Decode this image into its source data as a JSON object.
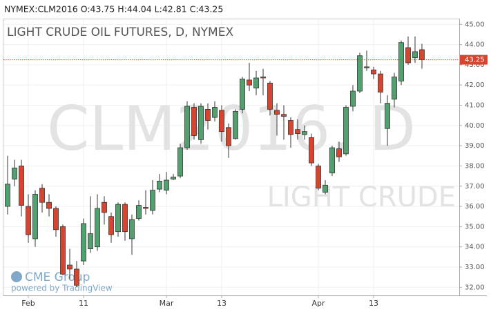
{
  "chart_data": {
    "type": "candlestick",
    "header": "NYMEX:CLM2016 O:43.75 H:44.04 L:42.81 C:43.25",
    "title": "LIGHT CRUDE OIL FUTURES, D, NYMEX",
    "watermark": "CLM2016, D",
    "watermark_sub": "LIGHT CRUDE",
    "logo": "CME Group",
    "powered": "powered by TradingView",
    "categories": [
      null,
      null,
      null,
      "Feb",
      null,
      null,
      null,
      null,
      null,
      null,
      null,
      "11",
      null,
      null,
      null,
      null,
      null,
      null,
      null,
      null,
      null,
      null,
      null,
      "Mar",
      null,
      null,
      null,
      null,
      null,
      null,
      null,
      "13",
      null,
      null,
      null,
      null,
      null,
      null,
      null,
      null,
      null,
      null,
      null,
      null,
      null,
      "Apr",
      null,
      null,
      null,
      null,
      null,
      null,
      null,
      "13",
      null,
      null,
      null,
      null,
      null,
      null,
      null
    ],
    "open": [
      36.0,
      37.35,
      38.0,
      36.0,
      34.4,
      36.9,
      36.2,
      35.9,
      35.0,
      33.1,
      32.9,
      33.3,
      33.9,
      34.0,
      36.2,
      35.5,
      34.75,
      36.1,
      34.4,
      35.4,
      35.95,
      35.8,
      36.85,
      36.8,
      37.35,
      37.5,
      38.9,
      40.9,
      39.3,
      40.8,
      40.4,
      40.75,
      39.9,
      39.35,
      40.8,
      42.25,
      41.85,
      42.4,
      42.1,
      40.75,
      40.55,
      40.25,
      39.8,
      39.55,
      39.4,
      38.0,
      36.7,
      37.65,
      38.85,
      38.6,
      40.95,
      41.7,
      42.9,
      42.75,
      42.55,
      39.85,
      41.3,
      42.2,
      43.85,
      43.35,
      43.75
    ],
    "high": [
      38.5,
      38.3,
      38.3,
      36.6,
      36.8,
      37.1,
      36.6,
      36.0,
      35.1,
      33.9,
      33.3,
      35.4,
      36.5,
      36.6,
      36.5,
      35.7,
      36.2,
      36.2,
      35.6,
      36.3,
      36.8,
      37.3,
      37.6,
      37.7,
      37.6,
      39.1,
      41.2,
      41.1,
      41.1,
      41.1,
      41.2,
      41.0,
      40.1,
      40.8,
      42.4,
      43.1,
      42.7,
      42.8,
      42.2,
      41.1,
      41.0,
      40.4,
      40.3,
      40.0,
      39.6,
      38.1,
      37.3,
      39.0,
      39.2,
      41.0,
      42.0,
      43.6,
      43.7,
      42.9,
      42.7,
      41.5,
      42.6,
      44.2,
      44.4,
      44.4,
      44.04
    ],
    "low": [
      35.6,
      37.0,
      35.5,
      34.2,
      34.0,
      35.7,
      35.5,
      34.5,
      32.6,
      32.4,
      32.0,
      33.1,
      33.7,
      33.8,
      35.1,
      34.2,
      34.5,
      34.3,
      33.6,
      35.3,
      35.6,
      35.6,
      36.7,
      36.6,
      37.3,
      37.4,
      38.8,
      39.3,
      39.1,
      39.8,
      40.2,
      39.2,
      38.4,
      39.3,
      40.6,
      41.7,
      41.5,
      41.5,
      40.5,
      39.5,
      39.3,
      38.9,
      39.3,
      39.3,
      38.0,
      36.8,
      36.6,
      37.5,
      38.2,
      38.5,
      40.7,
      41.6,
      42.7,
      42.3,
      41.1,
      39.0,
      40.9,
      42.0,
      43.0,
      43.1,
      42.81
    ],
    "close": [
      37.1,
      37.9,
      36.05,
      34.6,
      36.6,
      36.2,
      35.9,
      34.85,
      32.65,
      32.9,
      32.1,
      35.15,
      34.65,
      35.9,
      35.7,
      34.6,
      36.1,
      34.75,
      35.35,
      36.05,
      35.9,
      36.8,
      37.25,
      37.3,
      37.45,
      38.9,
      40.95,
      39.5,
      40.95,
      40.25,
      40.9,
      39.7,
      39.0,
      40.7,
      42.3,
      42.0,
      42.35,
      42.35,
      40.8,
      40.55,
      40.45,
      39.55,
      39.6,
      39.7,
      38.15,
      36.9,
      37.05,
      38.9,
      38.45,
      40.9,
      41.7,
      43.45,
      42.85,
      42.55,
      41.65,
      41.1,
      42.4,
      44.1,
      43.1,
      43.65,
      43.25
    ],
    "up_color": "#53a06f",
    "down_color": "#d8452f",
    "last_price": {
      "value": 43.25,
      "label": "43.25"
    },
    "ylim": [
      31.6,
      45.25
    ],
    "yticks": [
      {
        "value": 32,
        "label": "32.00"
      },
      {
        "value": 33,
        "label": "33.00"
      },
      {
        "value": 34,
        "label": "34.00"
      },
      {
        "value": 35,
        "label": "35.00"
      },
      {
        "value": 36,
        "label": "36.00"
      },
      {
        "value": 37,
        "label": "37.00"
      },
      {
        "value": 38,
        "label": "38.00"
      },
      {
        "value": 39,
        "label": "39.00"
      },
      {
        "value": 40,
        "label": "40.00"
      },
      {
        "value": 41,
        "label": "41.00"
      },
      {
        "value": 42,
        "label": "42.00"
      },
      {
        "value": 43,
        "label": "43.00"
      },
      {
        "value": 44,
        "label": "44.00"
      },
      {
        "value": 45,
        "label": "45.00"
      }
    ],
    "grid": true
  }
}
